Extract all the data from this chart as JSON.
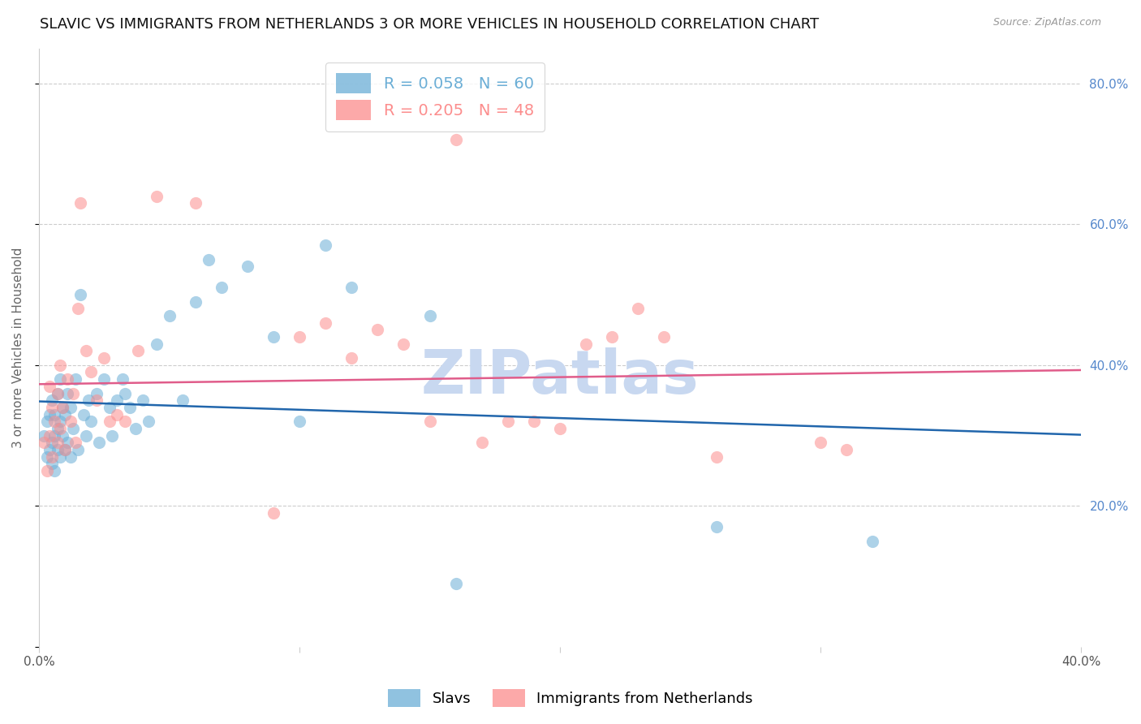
{
  "title": "SLAVIC VS IMMIGRANTS FROM NETHERLANDS 3 OR MORE VEHICLES IN HOUSEHOLD CORRELATION CHART",
  "source": "Source: ZipAtlas.com",
  "ylabel": "3 or more Vehicles in Household",
  "right_yticks": [
    0.0,
    0.2,
    0.4,
    0.6,
    0.8
  ],
  "right_yticklabels": [
    "",
    "20.0%",
    "40.0%",
    "60.0%",
    "80.0%"
  ],
  "xticks": [
    0.0,
    0.1,
    0.2,
    0.3,
    0.4
  ],
  "xticklabels": [
    "0.0%",
    "",
    "",
    "",
    "40.0%"
  ],
  "xlim": [
    0.0,
    0.4
  ],
  "ylim": [
    0.0,
    0.85
  ],
  "legend_entries": [
    {
      "label": "R = 0.058   N = 60",
      "color": "#6baed6"
    },
    {
      "label": "R = 0.205   N = 48",
      "color": "#fc8d8d"
    }
  ],
  "slavs_color": "#6baed6",
  "netherlands_color": "#fc8d8d",
  "slavs_alpha": 0.55,
  "netherlands_alpha": 0.55,
  "marker_size": 120,
  "trend_slavs_color": "#2166ac",
  "trend_netherlands_color": "#e05c8a",
  "trend_lw": 1.8,
  "background_color": "#ffffff",
  "grid_color": "#cccccc",
  "title_fontsize": 13,
  "axis_label_fontsize": 11,
  "tick_fontsize": 11,
  "right_tick_color": "#5588cc",
  "watermark": "ZIPatlas",
  "watermark_color": "#c8d8f0",
  "slavs_x": [
    0.002,
    0.003,
    0.003,
    0.004,
    0.004,
    0.005,
    0.005,
    0.005,
    0.006,
    0.006,
    0.006,
    0.007,
    0.007,
    0.007,
    0.008,
    0.008,
    0.008,
    0.009,
    0.009,
    0.01,
    0.01,
    0.011,
    0.011,
    0.012,
    0.012,
    0.013,
    0.014,
    0.015,
    0.016,
    0.017,
    0.018,
    0.019,
    0.02,
    0.022,
    0.023,
    0.025,
    0.027,
    0.028,
    0.03,
    0.032,
    0.033,
    0.035,
    0.037,
    0.04,
    0.042,
    0.045,
    0.05,
    0.055,
    0.06,
    0.065,
    0.07,
    0.08,
    0.09,
    0.1,
    0.11,
    0.12,
    0.15,
    0.16,
    0.26,
    0.32
  ],
  "slavs_y": [
    0.3,
    0.27,
    0.32,
    0.28,
    0.33,
    0.26,
    0.29,
    0.35,
    0.25,
    0.3,
    0.33,
    0.28,
    0.31,
    0.36,
    0.27,
    0.32,
    0.38,
    0.3,
    0.34,
    0.28,
    0.33,
    0.29,
    0.36,
    0.27,
    0.34,
    0.31,
    0.38,
    0.28,
    0.5,
    0.33,
    0.3,
    0.35,
    0.32,
    0.36,
    0.29,
    0.38,
    0.34,
    0.3,
    0.35,
    0.38,
    0.36,
    0.34,
    0.31,
    0.35,
    0.32,
    0.43,
    0.47,
    0.35,
    0.49,
    0.55,
    0.51,
    0.54,
    0.44,
    0.32,
    0.57,
    0.51,
    0.47,
    0.09,
    0.17,
    0.15
  ],
  "netherlands_x": [
    0.002,
    0.003,
    0.004,
    0.004,
    0.005,
    0.005,
    0.006,
    0.007,
    0.007,
    0.008,
    0.008,
    0.009,
    0.01,
    0.011,
    0.012,
    0.013,
    0.014,
    0.015,
    0.016,
    0.018,
    0.02,
    0.022,
    0.025,
    0.027,
    0.03,
    0.033,
    0.038,
    0.045,
    0.06,
    0.09,
    0.1,
    0.11,
    0.12,
    0.13,
    0.14,
    0.15,
    0.16,
    0.17,
    0.18,
    0.19,
    0.2,
    0.21,
    0.22,
    0.23,
    0.24,
    0.26,
    0.3,
    0.31
  ],
  "netherlands_y": [
    0.29,
    0.25,
    0.3,
    0.37,
    0.27,
    0.34,
    0.32,
    0.29,
    0.36,
    0.31,
    0.4,
    0.34,
    0.28,
    0.38,
    0.32,
    0.36,
    0.29,
    0.48,
    0.63,
    0.42,
    0.39,
    0.35,
    0.41,
    0.32,
    0.33,
    0.32,
    0.42,
    0.64,
    0.63,
    0.19,
    0.44,
    0.46,
    0.41,
    0.45,
    0.43,
    0.32,
    0.72,
    0.29,
    0.32,
    0.32,
    0.31,
    0.43,
    0.44,
    0.48,
    0.44,
    0.27,
    0.29,
    0.28
  ]
}
